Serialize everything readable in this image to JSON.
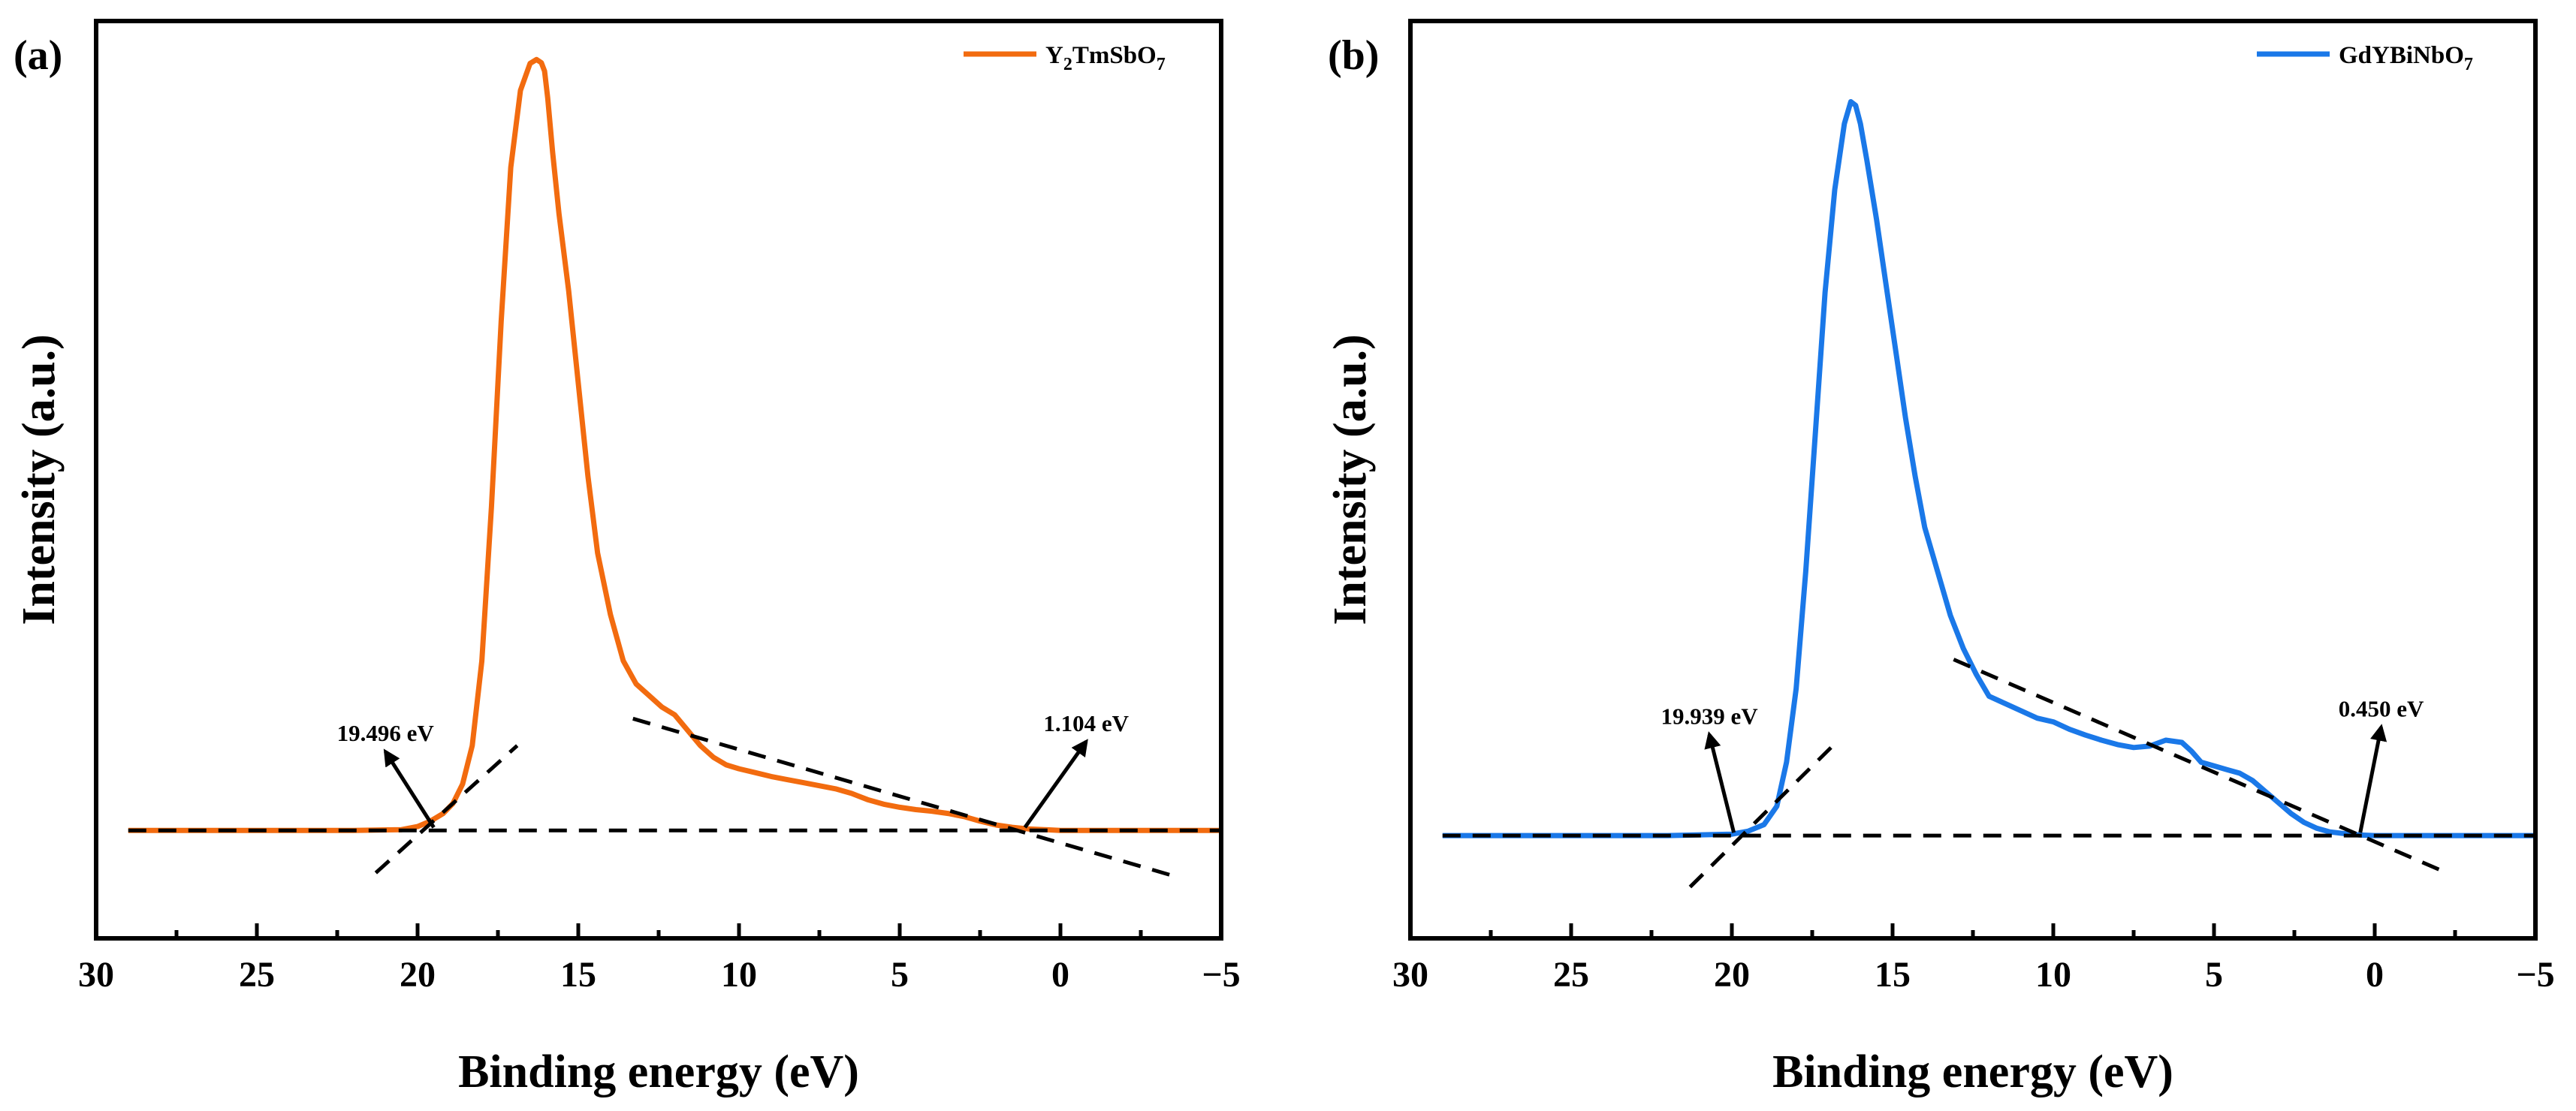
{
  "chart_data": [
    {
      "type": "line",
      "panel_label": "(a)",
      "xlabel": "Binding energy (eV)",
      "ylabel": "Intensity (a.u.)",
      "xlim": [
        30,
        -5
      ],
      "ylim": [
        -0.14,
        1.05
      ],
      "xticks": [
        30,
        25,
        20,
        15,
        10,
        5,
        0,
        -5
      ],
      "xtick_labels": [
        "30",
        "25",
        "20",
        "15",
        "10",
        "5",
        "0",
        "−5"
      ],
      "legend": {
        "base": "Y",
        "sub1": "2",
        "mid": "TmSbO",
        "sub2": "7",
        "position": "top-right"
      },
      "series": [
        {
          "name": "Y2TmSbO7",
          "color": "#f26b0f",
          "x": [
            29,
            25,
            22,
            20.5,
            20,
            19.6,
            19.2,
            18.9,
            18.6,
            18.3,
            18.0,
            17.7,
            17.4,
            17.1,
            16.8,
            16.5,
            16.3,
            16.15,
            16.05,
            15.95,
            15.8,
            15.6,
            15.3,
            15.0,
            14.7,
            14.4,
            14.0,
            13.6,
            13.2,
            12.8,
            12.4,
            12.0,
            11.6,
            11.2,
            10.8,
            10.4,
            10.0,
            9.5,
            9.0,
            8.5,
            8.0,
            7.5,
            7.0,
            6.5,
            6.0,
            5.5,
            5.0,
            4.5,
            4.0,
            3.5,
            3.0,
            2.5,
            2.0,
            1.5,
            1.0,
            0.5,
            0,
            -2,
            -5
          ],
          "values": [
            0,
            0,
            0,
            0.001,
            0.005,
            0.012,
            0.022,
            0.035,
            0.06,
            0.11,
            0.22,
            0.42,
            0.66,
            0.86,
            0.96,
            0.995,
            1.0,
            0.996,
            0.985,
            0.95,
            0.88,
            0.8,
            0.7,
            0.58,
            0.46,
            0.36,
            0.28,
            0.22,
            0.19,
            0.175,
            0.16,
            0.15,
            0.13,
            0.11,
            0.095,
            0.085,
            0.08,
            0.075,
            0.07,
            0.066,
            0.062,
            0.058,
            0.054,
            0.048,
            0.04,
            0.034,
            0.03,
            0.027,
            0.025,
            0.022,
            0.018,
            0.012,
            0.007,
            0.004,
            0.002,
            0.001,
            0,
            0,
            0
          ]
        }
      ],
      "guides": [
        {
          "x": [
            29,
            -5
          ],
          "y": [
            0,
            0
          ]
        },
        {
          "x": [
            21.3,
            16.9
          ],
          "y": [
            -0.055,
            0.11
          ]
        },
        {
          "x": [
            13.3,
            -3.6
          ],
          "y": [
            0.145,
            -0.06
          ]
        }
      ],
      "annotations": [
        {
          "text": "19.496 eV",
          "point": [
            19.496,
            0
          ],
          "label_pos": [
            21.0,
            0.112
          ]
        },
        {
          "text": "1.104 eV",
          "point": [
            1.104,
            0
          ],
          "label_pos": [
            -0.8,
            0.125
          ]
        }
      ]
    },
    {
      "type": "line",
      "panel_label": "(b)",
      "xlabel": "Binding energy (eV)",
      "ylabel": "Intensity (a.u.)",
      "xlim": [
        30,
        -5
      ],
      "ylim": [
        -0.14,
        1.11
      ],
      "xticks": [
        30,
        25,
        20,
        15,
        10,
        5,
        0,
        -5
      ],
      "xtick_labels": [
        "30",
        "25",
        "20",
        "15",
        "10",
        "5",
        "0",
        "−5"
      ],
      "legend": {
        "base": "GdYBiNbO",
        "sub1": "",
        "mid": "",
        "sub2": "7",
        "position": "top-right"
      },
      "series": [
        {
          "name": "GdYBiNbO7",
          "color": "#1a78e8",
          "x": [
            29,
            25,
            22,
            20,
            19.5,
            19.0,
            18.6,
            18.3,
            18.0,
            17.7,
            17.4,
            17.1,
            16.8,
            16.5,
            16.3,
            16.15,
            16.0,
            15.8,
            15.5,
            15.2,
            14.9,
            14.6,
            14.3,
            14.0,
            13.6,
            13.2,
            12.8,
            12.4,
            12.0,
            11.5,
            11.0,
            10.5,
            10.0,
            9.5,
            9.0,
            8.5,
            8.0,
            7.5,
            7.0,
            6.5,
            6.0,
            5.7,
            5.4,
            5.0,
            4.6,
            4.2,
            3.8,
            3.4,
            3.0,
            2.6,
            2.2,
            1.8,
            1.4,
            1.0,
            0.5,
            0,
            -2,
            -5
          ],
          "values": [
            0,
            0,
            0,
            0.002,
            0.006,
            0.015,
            0.04,
            0.1,
            0.2,
            0.36,
            0.55,
            0.74,
            0.88,
            0.97,
            1.0,
            0.995,
            0.97,
            0.92,
            0.84,
            0.75,
            0.66,
            0.57,
            0.49,
            0.42,
            0.36,
            0.3,
            0.255,
            0.22,
            0.19,
            0.18,
            0.17,
            0.16,
            0.155,
            0.145,
            0.137,
            0.13,
            0.124,
            0.12,
            0.122,
            0.13,
            0.127,
            0.115,
            0.1,
            0.095,
            0.09,
            0.085,
            0.075,
            0.06,
            0.045,
            0.03,
            0.018,
            0.01,
            0.005,
            0.003,
            0.001,
            0,
            0,
            0
          ]
        }
      ],
      "guides": [
        {
          "x": [
            29,
            -5
          ],
          "y": [
            0,
            0
          ]
        },
        {
          "x": [
            21.3,
            16.8
          ],
          "y": [
            -0.07,
            0.125
          ]
        },
        {
          "x": [
            13.1,
            -2.2
          ],
          "y": [
            0.24,
            -0.05
          ]
        }
      ],
      "annotations": [
        {
          "text": "19.939 eV",
          "point": [
            19.939,
            0
          ],
          "label_pos": [
            20.7,
            0.148
          ]
        },
        {
          "text": "0.450 eV",
          "point": [
            0.45,
            0
          ],
          "label_pos": [
            -0.2,
            0.158
          ]
        }
      ]
    }
  ]
}
